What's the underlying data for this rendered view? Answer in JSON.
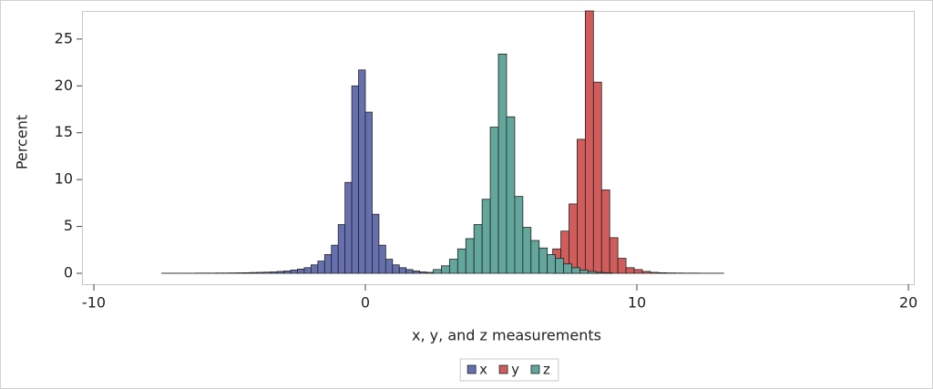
{
  "chart_data": {
    "type": "histogram",
    "xlabel": "x, y, and z measurements",
    "ylabel": "Percent",
    "xlim": [
      -10,
      20
    ],
    "xticks": [
      -10,
      0,
      10,
      20
    ],
    "ylim": [
      0,
      28
    ],
    "yticks": [
      0,
      5,
      10,
      15,
      20,
      25
    ],
    "legend": "bottom",
    "series": [
      {
        "name": "x",
        "color": "#6770ae",
        "bins": [
          -7.5,
          -7.25,
          -7,
          -6.75,
          -6.5,
          -6.25,
          -6,
          -5.75,
          -5.5,
          -5.25,
          -5,
          -4.75,
          -4.5,
          -4.25,
          -4,
          -3.75,
          -3.5,
          -3.25,
          -3,
          -2.75,
          -2.5,
          -2.25,
          -2,
          -1.75,
          -1.5,
          -1.25,
          -1,
          -0.75,
          -0.5,
          -0.25,
          0,
          0.25,
          0.5,
          0.75,
          1,
          1.25,
          1.5,
          1.75,
          2,
          2.25,
          2.5
        ],
        "values": [
          0.01,
          0.01,
          0.01,
          0.01,
          0.01,
          0.02,
          0.02,
          0.02,
          0.03,
          0.03,
          0.04,
          0.05,
          0.06,
          0.08,
          0.1,
          0.12,
          0.15,
          0.2,
          0.25,
          0.35,
          0.45,
          0.6,
          0.9,
          1.3,
          2.0,
          3.0,
          5.2,
          9.7,
          20.0,
          21.7,
          17.2,
          6.3,
          3.0,
          1.5,
          0.9,
          0.6,
          0.4,
          0.25,
          0.15,
          0.1
        ]
      },
      {
        "name": "y",
        "color": "#d05c5c",
        "bins": [
          6.9,
          7.2,
          7.5,
          7.8,
          8.1,
          8.4,
          8.7,
          9,
          9.3,
          9.6,
          9.9,
          10.2,
          10.5,
          10.8,
          11.1,
          11.4,
          11.7,
          12,
          12.3,
          12.6,
          12.9,
          13.2
        ],
        "values": [
          2.6,
          4.5,
          7.4,
          14.3,
          28,
          20.4,
          8.9,
          3.8,
          1.6,
          0.6,
          0.4,
          0.2,
          0.1,
          0.06,
          0.04,
          0.03,
          0.02,
          0.02,
          0.01,
          0.01,
          0.01
        ]
      },
      {
        "name": "z",
        "color": "#62a69c",
        "bins": [
          2.5,
          2.8,
          3.1,
          3.4,
          3.7,
          4,
          4.3,
          4.6,
          4.9,
          5.2,
          5.5,
          5.8,
          6.1,
          6.4,
          6.7,
          7,
          7.3,
          7.6,
          7.9,
          8.2,
          8.5,
          8.8,
          9.1
        ],
        "values": [
          0.4,
          0.8,
          1.5,
          2.6,
          3.7,
          5.2,
          7.9,
          15.6,
          23.4,
          16.7,
          8.2,
          4.9,
          3.5,
          2.7,
          2,
          1.6,
          1,
          0.6,
          0.35,
          0.2,
          0.1,
          0.05
        ]
      }
    ]
  }
}
